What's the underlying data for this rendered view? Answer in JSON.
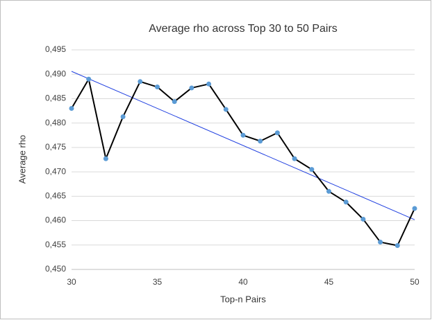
{
  "chart_data": {
    "type": "line",
    "title": "Average rho across Top 30 to 50 Pairs",
    "x_label": "Top-n Pairs",
    "y_label": "Average rho",
    "x": [
      30,
      31,
      32,
      33,
      34,
      35,
      36,
      37,
      38,
      39,
      40,
      41,
      42,
      43,
      44,
      45,
      46,
      47,
      48,
      49,
      50
    ],
    "series": [
      {
        "color": "#000000",
        "marker_color": "#5b9bd5",
        "values": [
          0.483,
          0.489,
          0.4727,
          0.4813,
          0.4885,
          0.4874,
          0.4844,
          0.4872,
          0.488,
          0.4828,
          0.4775,
          0.4763,
          0.478,
          0.4727,
          0.4705,
          0.466,
          0.4638,
          0.4603,
          0.4556,
          0.4549,
          0.4625
        ]
      }
    ],
    "trendline": {
      "color": "#1f3fe0",
      "x": [
        30,
        50
      ],
      "values": [
        0.4906,
        0.4602
      ]
    },
    "xlim": [
      30,
      50
    ],
    "xticks": [
      30,
      35,
      40,
      45,
      50
    ],
    "ylim": [
      0.45,
      0.495
    ],
    "yticks": [
      {
        "value": 0.45,
        "label": "0,450"
      },
      {
        "value": 0.455,
        "label": "0,455"
      },
      {
        "value": 0.46,
        "label": "0,460"
      },
      {
        "value": 0.465,
        "label": "0,465"
      },
      {
        "value": 0.47,
        "label": "0,470"
      },
      {
        "value": 0.475,
        "label": "0,475"
      },
      {
        "value": 0.48,
        "label": "0,480"
      },
      {
        "value": 0.485,
        "label": "0,485"
      },
      {
        "value": 0.49,
        "label": "0,490"
      },
      {
        "value": 0.495,
        "label": "0,495"
      }
    ],
    "grid": true
  }
}
